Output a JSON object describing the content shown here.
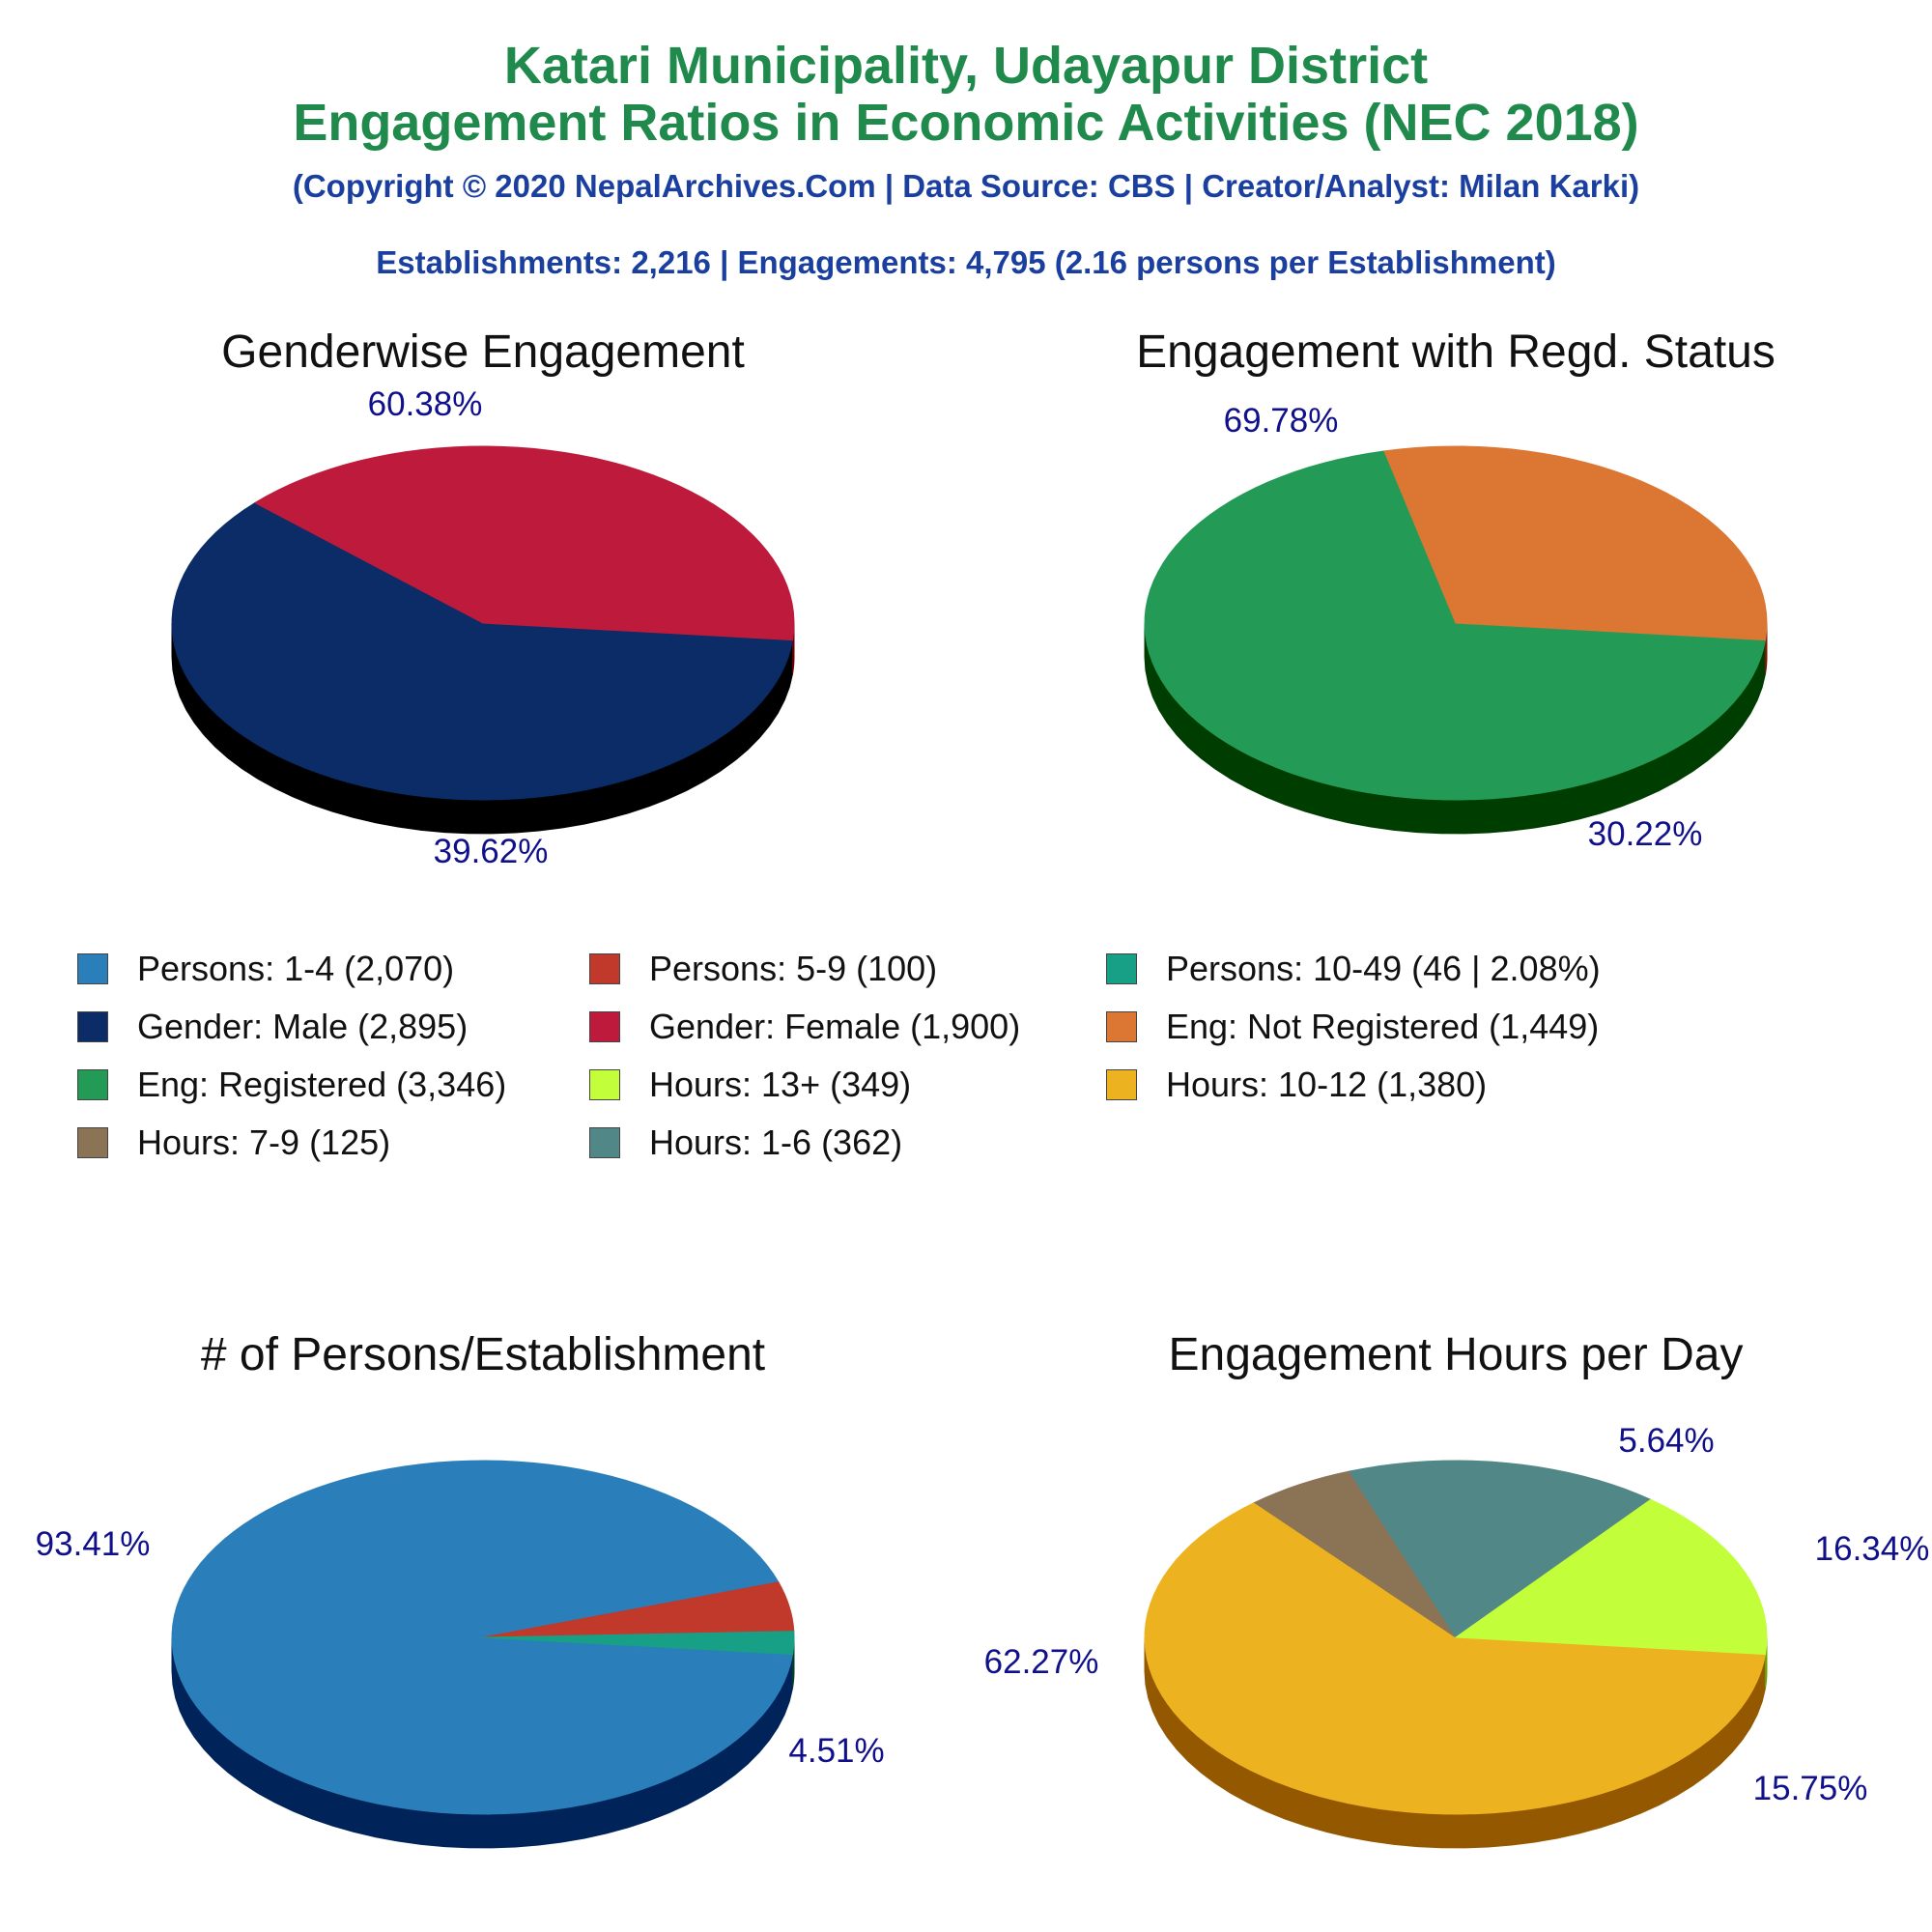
{
  "header": {
    "title_line1": "Katari Municipality, Udayapur District",
    "title_line2": "Engagement Ratios in Economic Activities (NEC 2018)",
    "copyright": "(Copyright © 2020 NepalArchives.Com | Data Source: CBS | Creator/Analyst: Milan Karki)",
    "summary": "Establishments: 2,216 | Engagements: 4,795 (2.16 persons per Establishment)"
  },
  "colors": {
    "title": "#1f8a4c",
    "subtitle": "#1a3f9e",
    "pct_label": "#10108a"
  },
  "legend": [
    {
      "label": "Persons: 1-4 (2,070)",
      "color": "#2a7fba"
    },
    {
      "label": "Persons: 5-9 (100)",
      "color": "#c0392b"
    },
    {
      "label": "Persons: 10-49 (46 | 2.08%)",
      "color": "#17a085"
    },
    {
      "label": "Gender: Male (2,895)",
      "color": "#0b2c66"
    },
    {
      "label": "Gender: Female (1,900)",
      "color": "#be1b3c"
    },
    {
      "label": "Eng: Not Registered (1,449)",
      "color": "#dc7633"
    },
    {
      "label": "Eng: Registered (3,346)",
      "color": "#239b56"
    },
    {
      "label": "Hours: 13+ (349)",
      "color": "#c2ff3a"
    },
    {
      "label": "Hours: 10-12 (1,380)",
      "color": "#edb21f"
    },
    {
      "label": "Hours: 7-9 (125)",
      "color": "#8b7355"
    },
    {
      "label": "Hours: 1-6 (362)",
      "color": "#528787"
    }
  ],
  "chart_data": [
    {
      "type": "pie",
      "title": "Genderwise Engagement",
      "slices": [
        {
          "name": "Gender: Male",
          "value": 2895,
          "pct_label": "60.38%",
          "color": "#0b2c66",
          "side": "#000000"
        },
        {
          "name": "Gender: Female",
          "value": 1900,
          "pct_label": "39.62%",
          "color": "#be1b3c",
          "side": "#660000"
        }
      ]
    },
    {
      "type": "pie",
      "title": "Engagement with Regd. Status",
      "slices": [
        {
          "name": "Eng: Registered",
          "value": 3346,
          "pct_label": "69.78%",
          "color": "#239b56",
          "side": "#003d00"
        },
        {
          "name": "Eng: Not Registered",
          "value": 1449,
          "pct_label": "30.22%",
          "color": "#dc7633",
          "side": "#7a1a00"
        }
      ]
    },
    {
      "type": "pie",
      "title": "# of Persons/Establishment",
      "slices": [
        {
          "name": "Persons: 1-4",
          "value": 2070,
          "pct_label": "93.41%",
          "color": "#2a7fba",
          "side": "#00235a"
        },
        {
          "name": "Persons: 5-9",
          "value": 100,
          "pct_label": "4.51%",
          "color": "#c0392b",
          "side": "#660000"
        },
        {
          "name": "Persons: 10-49",
          "value": 46,
          "pct_label": "",
          "color": "#17a085",
          "side": "#003f2c"
        }
      ]
    },
    {
      "type": "pie",
      "title": "Engagement Hours per Day",
      "slices": [
        {
          "name": "Hours: 10-12",
          "value": 1380,
          "pct_label": "62.27%",
          "color": "#edb21f",
          "side": "#935800"
        },
        {
          "name": "Hours: 7-9",
          "value": 125,
          "pct_label": "5.64%",
          "color": "#8b7355",
          "side": "#2f1a00"
        },
        {
          "name": "Hours: 1-6",
          "value": 362,
          "pct_label": "16.34%",
          "color": "#528787",
          "side": "#002d2d"
        },
        {
          "name": "Hours: 13+",
          "value": 349,
          "pct_label": "15.75%",
          "color": "#c2ff3a",
          "side": "#68a500"
        }
      ]
    }
  ]
}
